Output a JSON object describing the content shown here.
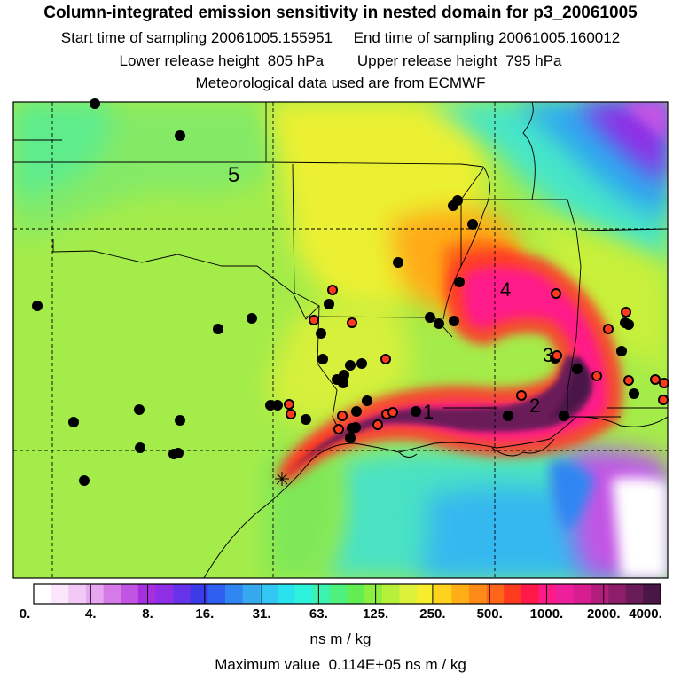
{
  "title": "Column-integrated emission sensitivity in nested domain for p3_20061005",
  "line2": "Start time of sampling 20061005.155951     End time of sampling 20061005.160012",
  "line3": "Lower release height  805 hPa        Upper release height  795 hPa",
  "line4": "Meteorological data used are from ECMWF",
  "labels": {
    "l5": "5",
    "l4": "4",
    "l3": "3",
    "l2": "2",
    "l1": "1"
  },
  "colorbar": {
    "ticks": [
      "0.",
      "4.",
      "8.",
      "16.",
      "31.",
      "63.",
      "125.",
      "250.",
      "500.",
      "1000.",
      "2000.",
      "4000."
    ],
    "units": "ns m / kg",
    "colors": [
      "#ffffff",
      "#fbe6fb",
      "#f2c8f5",
      "#e7a6f0",
      "#d67ae8",
      "#c254e4",
      "#a82ee2",
      "#8f2ee6",
      "#6633e8",
      "#3b3be8",
      "#2f5ff0",
      "#2f86f2",
      "#35a8f0",
      "#33c6f2",
      "#2ae2ee",
      "#2cf2dc",
      "#3cf2b0",
      "#4ef07e",
      "#62ee52",
      "#8cee3e",
      "#b6f03a",
      "#dcf23a",
      "#f6ee2c",
      "#ffd21e",
      "#ffae18",
      "#ff8a18",
      "#ff6418",
      "#ff3a1e",
      "#ff1848",
      "#ff1a8a",
      "#ee1f9c",
      "#d81e8e",
      "#b41c7e",
      "#8e1e6a",
      "#6a1c58",
      "#4a1646"
    ]
  },
  "max_value": "Maximum value  0.114E+05 ns m / kg"
}
